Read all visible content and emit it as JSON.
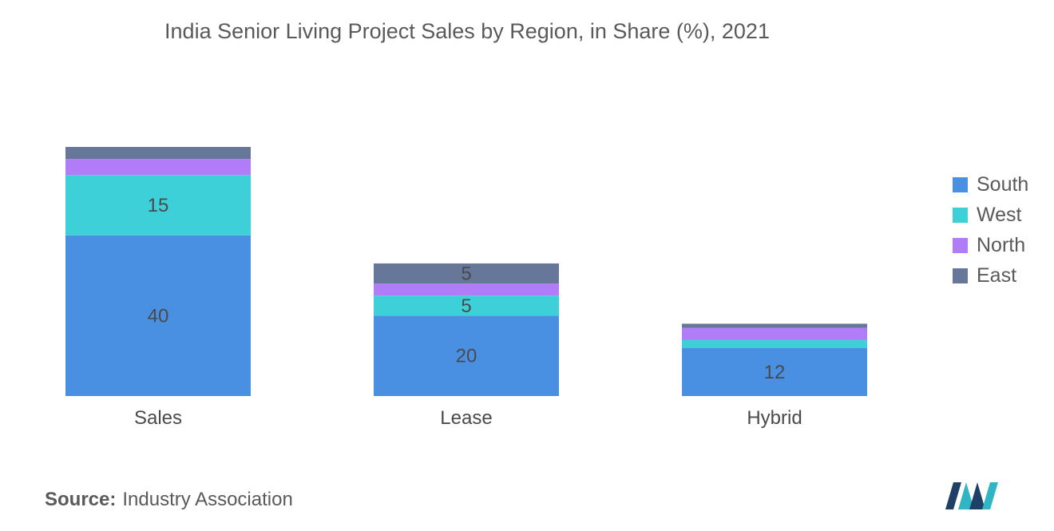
{
  "chart_data": {
    "type": "bar",
    "stacked": true,
    "title": "India Senior Living Project Sales by Region, in Share (%), 2021",
    "categories": [
      "Sales",
      "Lease",
      "Hybrid"
    ],
    "series": [
      {
        "name": "South",
        "color": "#4a90e2",
        "values": [
          40,
          20,
          12
        ],
        "labels": [
          "40",
          "20",
          "12"
        ]
      },
      {
        "name": "West",
        "color": "#3dd0d8",
        "values": [
          15,
          5,
          2
        ],
        "labels": [
          "15",
          "5",
          ""
        ]
      },
      {
        "name": "North",
        "color": "#b07cf7",
        "values": [
          4,
          3,
          3
        ],
        "labels": [
          "",
          "",
          ""
        ]
      },
      {
        "name": "East",
        "color": "#667799",
        "values": [
          3,
          5,
          1
        ],
        "labels": [
          "",
          "5",
          ""
        ]
      }
    ],
    "ylim": [
      0,
      62
    ],
    "xlabel": "",
    "ylabel": "",
    "grid": false,
    "legend_position": "right"
  },
  "source": {
    "label": "Source:",
    "text": "Industry Association"
  },
  "logo": {
    "icon": "mordor-logo-icon",
    "colors": [
      "#1e3f66",
      "#2fb5c4"
    ]
  }
}
